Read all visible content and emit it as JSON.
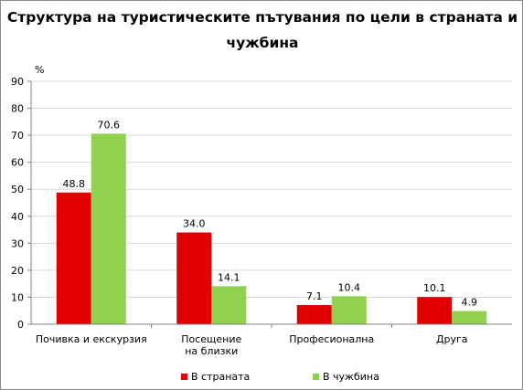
{
  "chart_data": {
    "type": "bar",
    "title_lines": [
      "Структура на туристическите пътувания по цели в страната и",
      "чужбина"
    ],
    "ylabel": "%",
    "ylim": [
      0,
      90
    ],
    "ytick_step": 10,
    "grid": true,
    "legend_position": "bottom",
    "categories": [
      [
        "Почивка и екскурзия"
      ],
      [
        "Посещение",
        "на близки"
      ],
      [
        "Професионална"
      ],
      [
        "Друга"
      ]
    ],
    "series": [
      {
        "name": "В страната",
        "color": "#e00000",
        "values": [
          48.8,
          34.0,
          7.1,
          10.1
        ],
        "labels": [
          "48.8",
          "34.0",
          "7.1",
          "10.1"
        ]
      },
      {
        "name": "В чужбина",
        "color": "#92d050",
        "values": [
          70.6,
          14.1,
          10.4,
          4.9
        ],
        "labels": [
          "70.6",
          "14.1",
          "10.4",
          "4.9"
        ]
      }
    ]
  }
}
